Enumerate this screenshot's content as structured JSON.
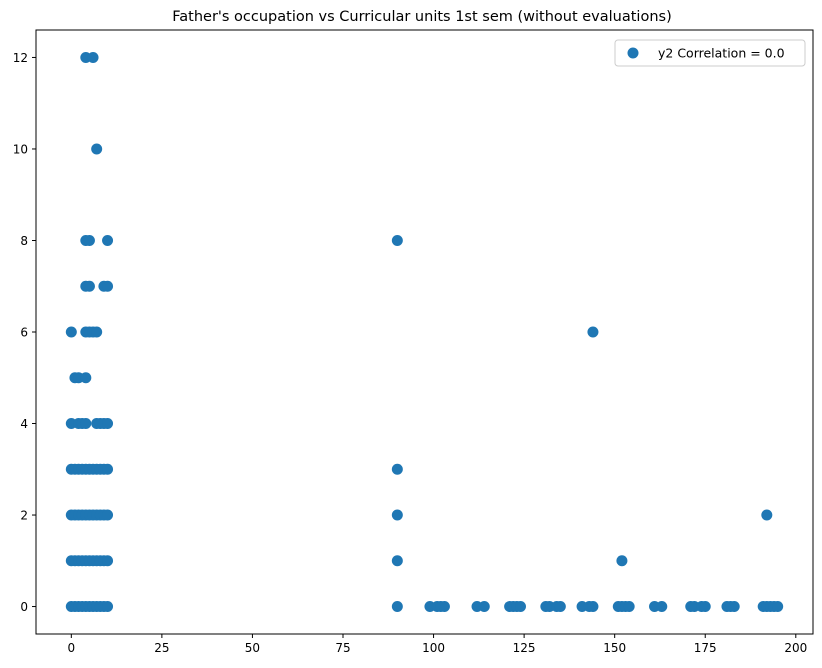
{
  "chart_data": {
    "type": "scatter",
    "title": "Father's occupation vs Curricular units 1st sem (without evaluations)",
    "xlabel": "",
    "ylabel": "",
    "xlim": [
      -9.75,
      204.75
    ],
    "ylim": [
      -0.6,
      12.6
    ],
    "xticks": [
      0,
      25,
      50,
      75,
      100,
      125,
      150,
      175,
      200
    ],
    "yticks": [
      0,
      2,
      4,
      6,
      8,
      10,
      12
    ],
    "grid": false,
    "legend": {
      "position": "top-right",
      "entries": [
        "y2 Correlation = 0.0"
      ]
    },
    "colors": {
      "points": "#1f77b4"
    },
    "series": [
      {
        "name": "y2 Correlation = 0.0",
        "points": [
          [
            0,
            0
          ],
          [
            1,
            0
          ],
          [
            2,
            0
          ],
          [
            3,
            0
          ],
          [
            4,
            0
          ],
          [
            5,
            0
          ],
          [
            6,
            0
          ],
          [
            7,
            0
          ],
          [
            8,
            0
          ],
          [
            9,
            0
          ],
          [
            10,
            0
          ],
          [
            0,
            1
          ],
          [
            1,
            1
          ],
          [
            2,
            1
          ],
          [
            3,
            1
          ],
          [
            4,
            1
          ],
          [
            5,
            1
          ],
          [
            6,
            1
          ],
          [
            7,
            1
          ],
          [
            8,
            1
          ],
          [
            9,
            1
          ],
          [
            10,
            1
          ],
          [
            0,
            2
          ],
          [
            1,
            2
          ],
          [
            2,
            2
          ],
          [
            3,
            2
          ],
          [
            4,
            2
          ],
          [
            5,
            2
          ],
          [
            6,
            2
          ],
          [
            7,
            2
          ],
          [
            8,
            2
          ],
          [
            9,
            2
          ],
          [
            10,
            2
          ],
          [
            0,
            3
          ],
          [
            1,
            3
          ],
          [
            2,
            3
          ],
          [
            3,
            3
          ],
          [
            4,
            3
          ],
          [
            5,
            3
          ],
          [
            6,
            3
          ],
          [
            7,
            3
          ],
          [
            8,
            3
          ],
          [
            9,
            3
          ],
          [
            10,
            3
          ],
          [
            0,
            4
          ],
          [
            2,
            4
          ],
          [
            3,
            4
          ],
          [
            4,
            4
          ],
          [
            7,
            4
          ],
          [
            8,
            4
          ],
          [
            9,
            4
          ],
          [
            10,
            4
          ],
          [
            1,
            5
          ],
          [
            2,
            5
          ],
          [
            4,
            5
          ],
          [
            0,
            6
          ],
          [
            4,
            6
          ],
          [
            5,
            6
          ],
          [
            6,
            6
          ],
          [
            7,
            6
          ],
          [
            4,
            7
          ],
          [
            5,
            7
          ],
          [
            9,
            7
          ],
          [
            10,
            7
          ],
          [
            4,
            8
          ],
          [
            5,
            8
          ],
          [
            10,
            8
          ],
          [
            7,
            10
          ],
          [
            4,
            12
          ],
          [
            6,
            12
          ],
          [
            90,
            0
          ],
          [
            90,
            1
          ],
          [
            90,
            2
          ],
          [
            90,
            3
          ],
          [
            90,
            8
          ],
          [
            99,
            0
          ],
          [
            101,
            0
          ],
          [
            102,
            0
          ],
          [
            103,
            0
          ],
          [
            112,
            0
          ],
          [
            114,
            0
          ],
          [
            121,
            0
          ],
          [
            122,
            0
          ],
          [
            123,
            0
          ],
          [
            124,
            0
          ],
          [
            131,
            0
          ],
          [
            132,
            0
          ],
          [
            134,
            0
          ],
          [
            135,
            0
          ],
          [
            141,
            0
          ],
          [
            143,
            0
          ],
          [
            144,
            0
          ],
          [
            144,
            6
          ],
          [
            151,
            0
          ],
          [
            152,
            0
          ],
          [
            152,
            1
          ],
          [
            153,
            0
          ],
          [
            154,
            0
          ],
          [
            161,
            0
          ],
          [
            163,
            0
          ],
          [
            171,
            0
          ],
          [
            172,
            0
          ],
          [
            174,
            0
          ],
          [
            175,
            0
          ],
          [
            181,
            0
          ],
          [
            182,
            0
          ],
          [
            183,
            0
          ],
          [
            191,
            0
          ],
          [
            192,
            0
          ],
          [
            192,
            2
          ],
          [
            193,
            0
          ],
          [
            194,
            0
          ],
          [
            195,
            0
          ]
        ]
      }
    ]
  }
}
